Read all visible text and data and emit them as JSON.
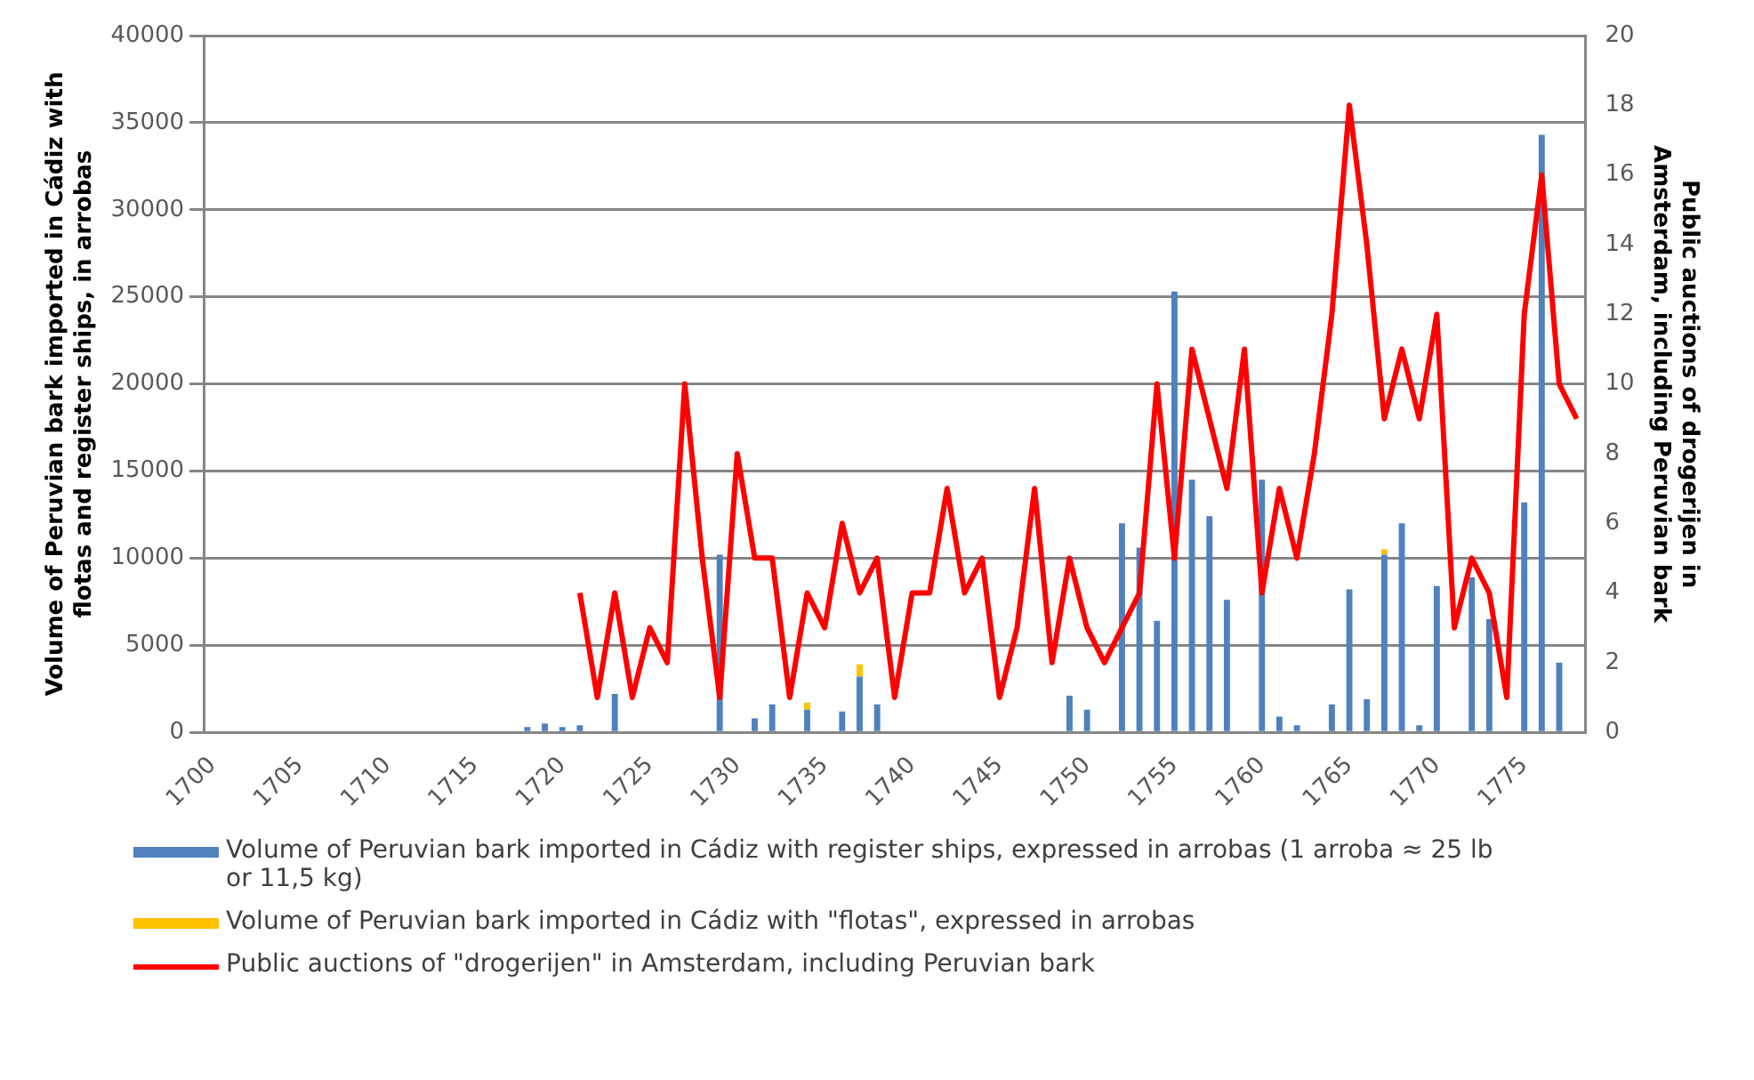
{
  "chart_data": {
    "type": "bar",
    "ylabel": "Volume of Peruvian bark imported in Cádiz with flotas and register ships, in arrobas",
    "y2label": "Public auctions of drogerijen in Amsterdam, including Peruvian bark",
    "categories": [
      "1700",
      null,
      null,
      null,
      null,
      "1705",
      null,
      null,
      null,
      null,
      "1710",
      null,
      null,
      null,
      null,
      "1715",
      null,
      null,
      null,
      null,
      "1720",
      null,
      null,
      null,
      null,
      "1725",
      null,
      null,
      null,
      null,
      "1730",
      null,
      null,
      null,
      null,
      "1735",
      null,
      null,
      null,
      null,
      "1740",
      null,
      null,
      null,
      null,
      "1745",
      null,
      null,
      null,
      null,
      "1750",
      null,
      null,
      null,
      null,
      "1755",
      null,
      null,
      null,
      null,
      "1760",
      null,
      null,
      null,
      null,
      "1765",
      null,
      null,
      null,
      null,
      "1770",
      null,
      null,
      null,
      null,
      "1775",
      null,
      null,
      null
    ],
    "series": [
      {
        "name": "Volume of Peruvian bark imported in Cádiz with register ships, expressed in arrobas (1 arroba ≈ 25 lb or 11,5 kg)",
        "color": "#4f81bd",
        "values": [
          0,
          0,
          0,
          0,
          0,
          0,
          0,
          0,
          0,
          0,
          0,
          0,
          0,
          0,
          0,
          0,
          0,
          0,
          300,
          500,
          300,
          400,
          0,
          2200,
          0,
          0,
          0,
          0,
          0,
          10200,
          0,
          800,
          1600,
          0,
          1300,
          0,
          1200,
          3200,
          1600,
          0,
          0,
          0,
          0,
          0,
          0,
          0,
          0,
          0,
          0,
          2100,
          1300,
          0,
          12000,
          10600,
          6400,
          25300,
          14500,
          12400,
          7600,
          0,
          14500,
          900,
          400,
          0,
          1600,
          8200,
          1900,
          10200,
          12000,
          400,
          8400,
          0,
          8900,
          6500,
          null,
          13200,
          34300,
          4000,
          0
        ]
      },
      {
        "name": "Volume of Peruvian bark imported in Cádiz with \"flotas\", expressed in arrobas",
        "color": "#ffc000",
        "values": [
          0,
          0,
          0,
          0,
          0,
          0,
          0,
          0,
          0,
          0,
          0,
          0,
          0,
          0,
          0,
          0,
          0,
          0,
          0,
          0,
          0,
          0,
          0,
          0,
          0,
          0,
          0,
          0,
          0,
          0,
          0,
          0,
          0,
          0,
          400,
          0,
          0,
          700,
          0,
          0,
          0,
          0,
          0,
          0,
          0,
          0,
          0,
          0,
          0,
          0,
          0,
          0,
          0,
          0,
          0,
          0,
          0,
          0,
          0,
          0,
          0,
          0,
          0,
          0,
          0,
          0,
          0,
          300,
          0,
          0,
          0,
          0,
          0,
          0,
          0,
          0,
          0,
          0,
          0
        ]
      },
      {
        "name": "Public auctions of \"drogerijen\" in Amsterdam, including Peruvian bark",
        "type": "line",
        "axis": "y2",
        "color": "#ff0000",
        "values": [
          null,
          null,
          null,
          null,
          null,
          null,
          null,
          null,
          null,
          null,
          null,
          null,
          null,
          null,
          null,
          null,
          null,
          null,
          null,
          null,
          null,
          4,
          1,
          4,
          1,
          3,
          2,
          10,
          5,
          1,
          8,
          5,
          5,
          1,
          4,
          3,
          6,
          4,
          5,
          1,
          4,
          4,
          7,
          4,
          5,
          1,
          3,
          7,
          2,
          5,
          3,
          2,
          3,
          4,
          10,
          5,
          11,
          9,
          7,
          11,
          4,
          7,
          5,
          8,
          12,
          18,
          14,
          9,
          11,
          9,
          12,
          3,
          5,
          4,
          1,
          12,
          16,
          10,
          9
        ]
      }
    ],
    "stacked": true,
    "ylim": [
      0,
      40000
    ],
    "yticks": [
      0,
      5000,
      10000,
      15000,
      20000,
      25000,
      30000,
      35000,
      40000
    ],
    "y2lim": [
      0,
      20
    ],
    "y2ticks": [
      0,
      2,
      4,
      6,
      8,
      10,
      12,
      14,
      16,
      18,
      20
    ],
    "grid": "y",
    "legend": "bottom",
    "marker": "none"
  }
}
